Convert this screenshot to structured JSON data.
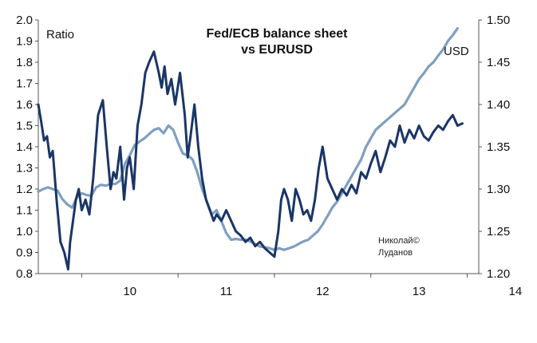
{
  "chart_data": {
    "type": "line",
    "title": "Fed/ECB balance sheet",
    "subtitle": "vs EURUSD",
    "ylabel_left": "Ratio",
    "ylabel_right": "USD",
    "x_ticks": [
      "10",
      "11",
      "12",
      "13",
      "14"
    ],
    "xlim": [
      2009.55,
      2014.12
    ],
    "ylim_left": [
      0.8,
      2.0
    ],
    "ylim_right": [
      1.2,
      1.5
    ],
    "left_ticks": [
      "2.0",
      "1.9",
      "1.8",
      "1.7",
      "1.6",
      "1.5",
      "1.4",
      "1.3",
      "1.2",
      "1.1",
      "1.0",
      "0.9",
      "0.8"
    ],
    "right_ticks": [
      "1.50",
      "1.45",
      "1.40",
      "1.35",
      "1.30",
      "1.25",
      "1.20"
    ],
    "colors": {
      "ratio": "#1a3566",
      "eurusd": "#7f9fc0",
      "axis": "#555555"
    },
    "series": [
      {
        "name": "Fed/ECB balance sheet ratio",
        "axis": "left",
        "x": [
          2009.55,
          2009.58,
          2009.61,
          2009.64,
          2009.67,
          2009.7,
          2009.74,
          2009.78,
          2009.82,
          2009.86,
          2009.88,
          2009.91,
          2009.94,
          2009.97,
          2010.0,
          2010.04,
          2010.08,
          2010.12,
          2010.17,
          2010.22,
          2010.26,
          2010.3,
          2010.33,
          2010.36,
          2010.4,
          2010.44,
          2010.47,
          2010.5,
          2010.54,
          2010.58,
          2010.62,
          2010.66,
          2010.7,
          2010.75,
          2010.8,
          2010.83,
          2010.86,
          2010.89,
          2010.93,
          2010.97,
          2011.02,
          2011.07,
          2011.1,
          2011.13,
          2011.17,
          2011.21,
          2011.25,
          2011.29,
          2011.33,
          2011.37,
          2011.4,
          2011.45,
          2011.5,
          2011.55,
          2011.6,
          2011.65,
          2011.7,
          2011.75,
          2011.8,
          2011.85,
          2011.9,
          2011.95,
          2012.0,
          2012.04,
          2012.07,
          2012.1,
          2012.14,
          2012.18,
          2012.22,
          2012.26,
          2012.3,
          2012.34,
          2012.38,
          2012.42,
          2012.46,
          2012.5,
          2012.55,
          2012.6,
          2012.65,
          2012.7,
          2012.75,
          2012.8,
          2012.85,
          2012.9,
          2012.95,
          2013.0,
          2013.05,
          2013.1,
          2013.15,
          2013.2,
          2013.25,
          2013.3,
          2013.35,
          2013.4,
          2013.45,
          2013.5,
          2013.55,
          2013.6,
          2013.65,
          2013.7,
          2013.75,
          2013.8,
          2013.85,
          2013.9,
          2013.95
        ],
        "values": [
          1.6,
          1.52,
          1.43,
          1.45,
          1.35,
          1.38,
          1.15,
          0.95,
          0.9,
          0.82,
          0.95,
          1.05,
          1.15,
          1.2,
          1.1,
          1.15,
          1.08,
          1.25,
          1.55,
          1.62,
          1.4,
          1.2,
          1.28,
          1.25,
          1.4,
          1.15,
          1.3,
          1.35,
          1.2,
          1.5,
          1.6,
          1.75,
          1.8,
          1.85,
          1.75,
          1.68,
          1.78,
          1.65,
          1.72,
          1.6,
          1.75,
          1.55,
          1.35,
          1.45,
          1.6,
          1.4,
          1.25,
          1.15,
          1.1,
          1.05,
          1.08,
          1.05,
          1.1,
          1.05,
          1.0,
          0.98,
          0.95,
          0.97,
          0.93,
          0.95,
          0.92,
          0.9,
          0.88,
          1.0,
          1.15,
          1.2,
          1.15,
          1.05,
          1.2,
          1.15,
          1.08,
          1.1,
          1.05,
          1.15,
          1.3,
          1.4,
          1.25,
          1.2,
          1.15,
          1.2,
          1.17,
          1.22,
          1.18,
          1.28,
          1.25,
          1.32,
          1.38,
          1.28,
          1.35,
          1.43,
          1.4,
          1.5,
          1.42,
          1.48,
          1.44,
          1.5,
          1.45,
          1.43,
          1.47,
          1.5,
          1.48,
          1.52,
          1.55,
          1.5,
          1.51
        ]
      },
      {
        "name": "EURUSD",
        "axis": "right",
        "x": [
          2009.55,
          2009.6,
          2009.65,
          2009.7,
          2009.75,
          2009.8,
          2009.85,
          2009.9,
          2009.95,
          2010.0,
          2010.05,
          2010.1,
          2010.15,
          2010.2,
          2010.25,
          2010.3,
          2010.35,
          2010.4,
          2010.45,
          2010.5,
          2010.55,
          2010.6,
          2010.65,
          2010.7,
          2010.75,
          2010.8,
          2010.85,
          2010.9,
          2010.95,
          2011.0,
          2011.05,
          2011.1,
          2011.15,
          2011.2,
          2011.25,
          2011.3,
          2011.35,
          2011.4,
          2011.45,
          2011.5,
          2011.55,
          2011.6,
          2011.65,
          2011.7,
          2011.75,
          2011.8,
          2011.85,
          2011.9,
          2011.95,
          2012.0,
          2012.05,
          2012.1,
          2012.15,
          2012.2,
          2012.25,
          2012.3,
          2012.35,
          2012.4,
          2012.45,
          2012.5,
          2012.55,
          2012.6,
          2012.65,
          2012.7,
          2012.75,
          2012.8,
          2012.85,
          2012.9,
          2012.95,
          2013.0,
          2013.05,
          2013.1,
          2013.15,
          2013.2,
          2013.25,
          2013.3,
          2013.35,
          2013.4,
          2013.45,
          2013.5,
          2013.55,
          2013.6,
          2013.65,
          2013.7,
          2013.75,
          2013.8,
          2013.85,
          2013.9
        ],
        "values": [
          1.297,
          1.3,
          1.302,
          1.3,
          1.298,
          1.288,
          1.282,
          1.278,
          1.29,
          1.295,
          1.293,
          1.292,
          1.302,
          1.305,
          1.304,
          1.306,
          1.306,
          1.31,
          1.33,
          1.34,
          1.352,
          1.356,
          1.36,
          1.365,
          1.37,
          1.372,
          1.366,
          1.375,
          1.37,
          1.355,
          1.342,
          1.34,
          1.335,
          1.32,
          1.3,
          1.285,
          1.27,
          1.275,
          1.262,
          1.248,
          1.24,
          1.241,
          1.24,
          1.24,
          1.238,
          1.235,
          1.232,
          1.231,
          1.23,
          1.228,
          1.23,
          1.228,
          1.23,
          1.232,
          1.235,
          1.238,
          1.24,
          1.245,
          1.25,
          1.258,
          1.268,
          1.278,
          1.285,
          1.295,
          1.305,
          1.315,
          1.325,
          1.335,
          1.35,
          1.36,
          1.37,
          1.375,
          1.38,
          1.385,
          1.39,
          1.395,
          1.4,
          1.41,
          1.42,
          1.43,
          1.437,
          1.445,
          1.45,
          1.458,
          1.465,
          1.475,
          1.482,
          1.49
        ]
      }
    ],
    "watermark": [
      "Николай©",
      "Луданов"
    ]
  }
}
